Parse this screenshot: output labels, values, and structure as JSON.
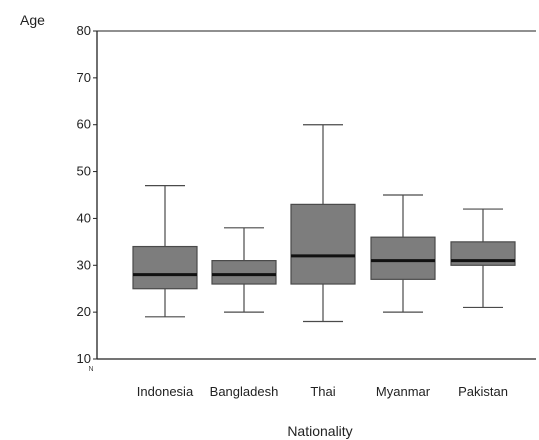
{
  "chart_data": {
    "type": "boxplot",
    "title": "",
    "xlabel": "Nationality",
    "ylabel": "Age",
    "categories": [
      "Indonesia",
      "Bangladesh",
      "Thai",
      "Myanmar",
      "Pakistan"
    ],
    "y_ticks": [
      10,
      20,
      30,
      40,
      50,
      60,
      70,
      80
    ],
    "ylim": [
      10,
      80
    ],
    "grid": false,
    "series": [
      {
        "category": "Indonesia",
        "whisker_low": 19,
        "q1": 25,
        "median": 28,
        "q3": 34,
        "whisker_high": 47
      },
      {
        "category": "Bangladesh",
        "whisker_low": 20,
        "q1": 26,
        "median": 28,
        "q3": 31,
        "whisker_high": 38
      },
      {
        "category": "Thai",
        "whisker_low": 18,
        "q1": 26,
        "median": 32,
        "q3": 43,
        "whisker_high": 60
      },
      {
        "category": "Myanmar",
        "whisker_low": 20,
        "q1": 27,
        "median": 31,
        "q3": 36,
        "whisker_high": 45
      },
      {
        "category": "Pakistan",
        "whisker_low": 21,
        "q1": 30,
        "median": 31,
        "q3": 35,
        "whisker_high": 42
      }
    ],
    "n_label": "N",
    "colors": {
      "box_fill": "#7d7d7d",
      "box_stroke": "#4a4a4a",
      "median": "#111111",
      "axis": "#222222"
    }
  }
}
